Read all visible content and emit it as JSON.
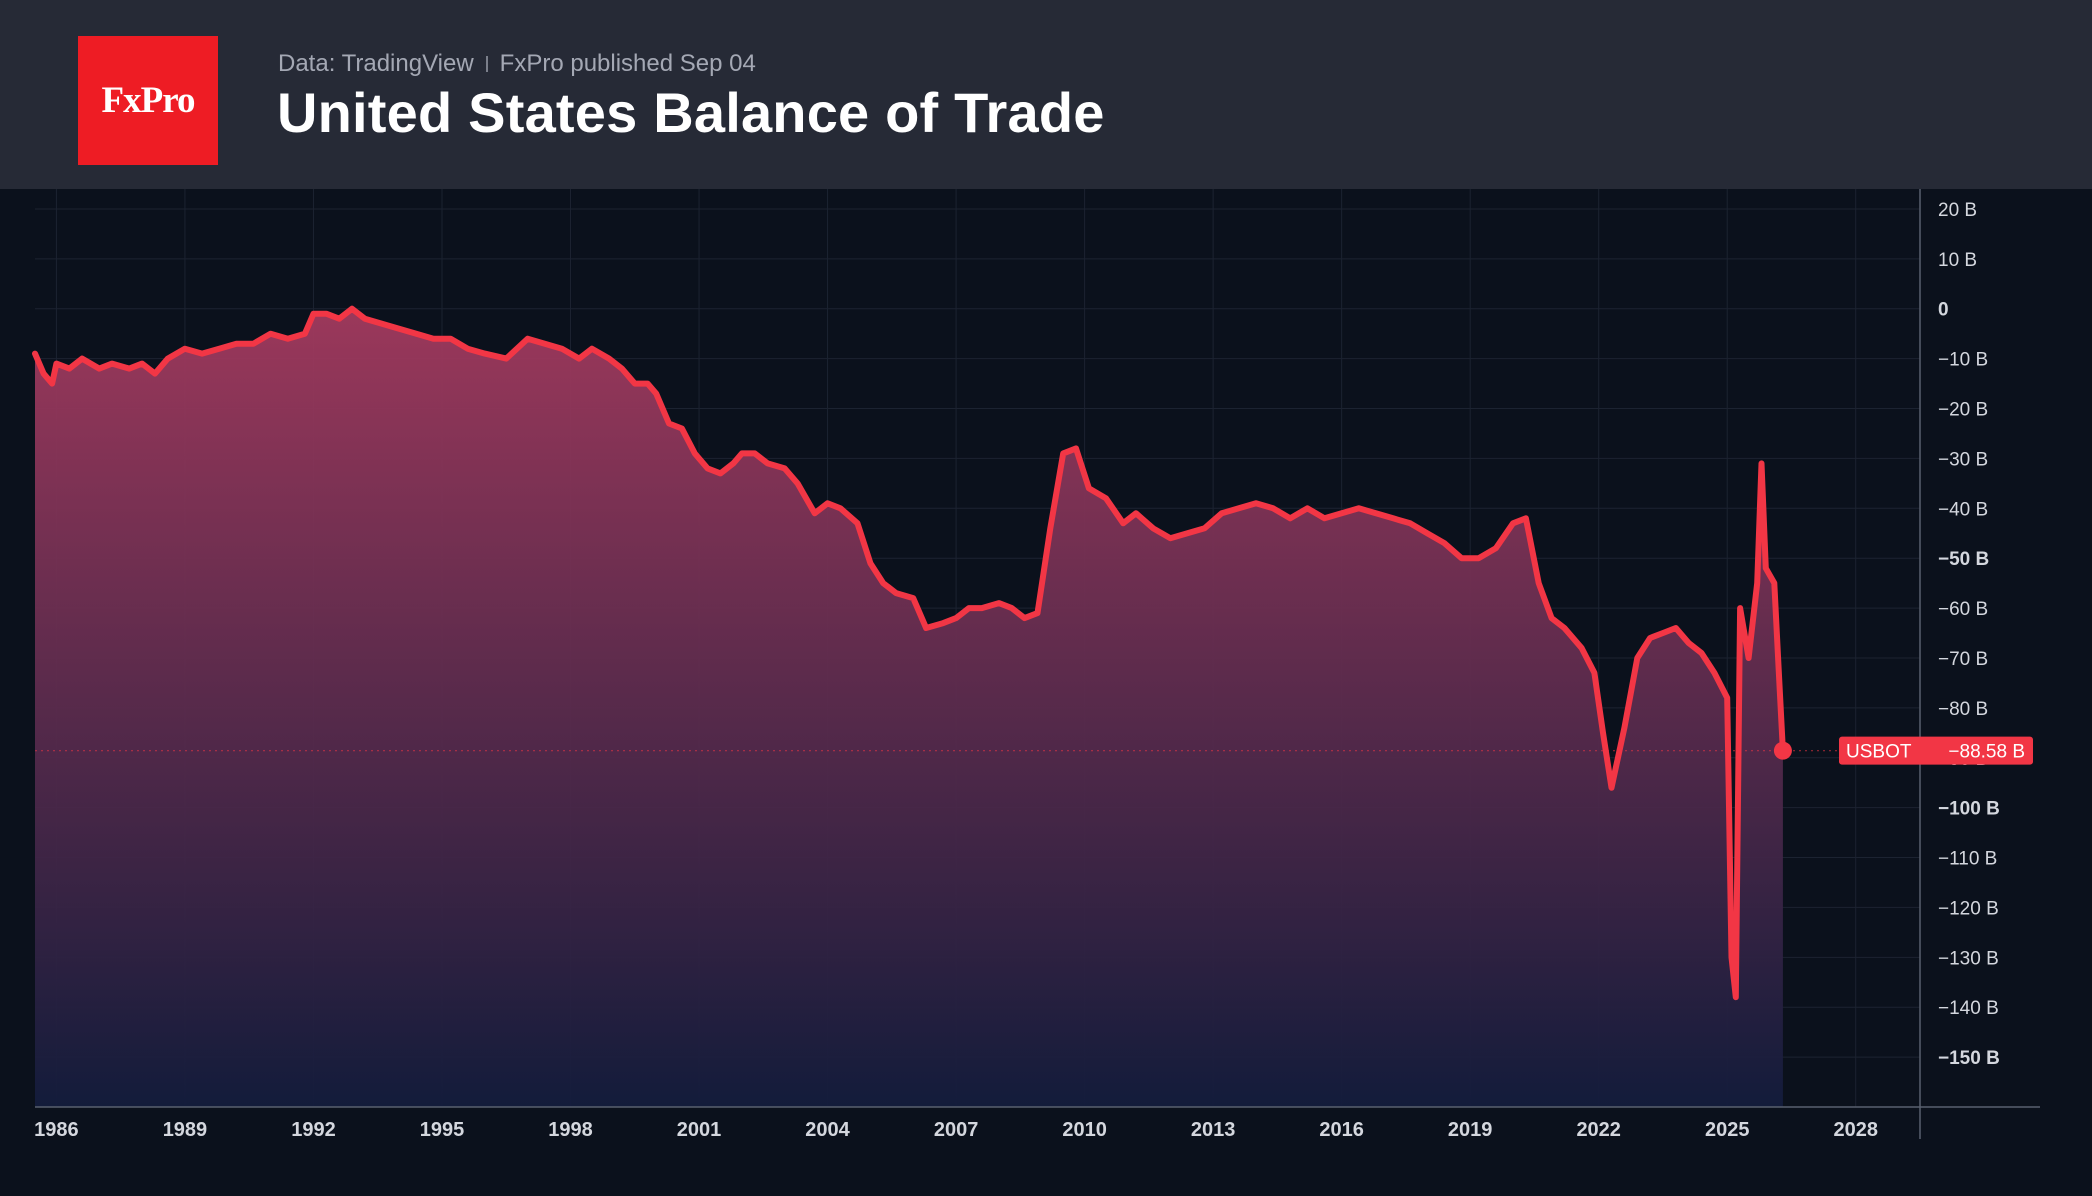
{
  "header": {
    "logo_text": "FxPro",
    "source": "Data: TradingView",
    "published": "FxPro published Sep 04",
    "title": "United States Balance of Trade"
  },
  "colors": {
    "header_bg": "#262a36",
    "plot_bg": "#0b111c",
    "line": "#f23645",
    "area_top": "#a33a5e",
    "area_bottom": "#131c3c",
    "logo_bg": "#ee1c24",
    "axis_text": "#d4d7de"
  },
  "chart_data": {
    "type": "area",
    "title": "United States Balance of Trade",
    "unit": "B",
    "x_tick_labels": [
      "1986",
      "1989",
      "1992",
      "1995",
      "1998",
      "2001",
      "2004",
      "2007",
      "2010",
      "2013",
      "2016",
      "2019",
      "2022",
      "2025",
      "2028"
    ],
    "y_tick_labels": [
      "20 B",
      "10 B",
      "0",
      "−10 B",
      "−20 B",
      "−30 B",
      "−40 B",
      "−50 B",
      "−60 B",
      "−70 B",
      "−80 B",
      "−90 B",
      "−100 B",
      "−110 B",
      "−120 B",
      "−130 B",
      "−140 B",
      "−150 B"
    ],
    "y_tick_values": [
      20,
      10,
      0,
      -10,
      -20,
      -30,
      -40,
      -50,
      -60,
      -70,
      -80,
      -90,
      -100,
      -110,
      -120,
      -130,
      -140,
      -150
    ],
    "xlim": [
      1985.5,
      2029.5
    ],
    "ylim": [
      -160,
      24
    ],
    "grid": true,
    "series": [
      {
        "name": "USBOT",
        "last_value": -88.58,
        "last_label": "USBOT",
        "last_value_label": "−88.58 B",
        "points": [
          [
            1985.5,
            -9
          ],
          [
            1985.7,
            -13
          ],
          [
            1985.9,
            -15
          ],
          [
            1986.0,
            -11
          ],
          [
            1986.3,
            -12
          ],
          [
            1986.6,
            -10
          ],
          [
            1987.0,
            -12
          ],
          [
            1987.3,
            -11
          ],
          [
            1987.7,
            -12
          ],
          [
            1988.0,
            -11
          ],
          [
            1988.3,
            -13
          ],
          [
            1988.6,
            -10
          ],
          [
            1989.0,
            -8
          ],
          [
            1989.4,
            -9
          ],
          [
            1989.8,
            -8
          ],
          [
            1990.2,
            -7
          ],
          [
            1990.6,
            -7
          ],
          [
            1991.0,
            -5
          ],
          [
            1991.4,
            -6
          ],
          [
            1991.8,
            -5
          ],
          [
            1992.0,
            -1
          ],
          [
            1992.3,
            -1
          ],
          [
            1992.6,
            -2
          ],
          [
            1992.9,
            0
          ],
          [
            1993.2,
            -2
          ],
          [
            1993.6,
            -3
          ],
          [
            1994.0,
            -4
          ],
          [
            1994.4,
            -5
          ],
          [
            1994.8,
            -6
          ],
          [
            1995.2,
            -6
          ],
          [
            1995.6,
            -8
          ],
          [
            1996.0,
            -9
          ],
          [
            1996.5,
            -10
          ],
          [
            1997.0,
            -6
          ],
          [
            1997.4,
            -7
          ],
          [
            1997.8,
            -8
          ],
          [
            1998.2,
            -10
          ],
          [
            1998.5,
            -8
          ],
          [
            1998.9,
            -10
          ],
          [
            1999.2,
            -12
          ],
          [
            1999.5,
            -15
          ],
          [
            1999.8,
            -15
          ],
          [
            2000.0,
            -17
          ],
          [
            2000.3,
            -23
          ],
          [
            2000.6,
            -24
          ],
          [
            2000.9,
            -29
          ],
          [
            2001.2,
            -32
          ],
          [
            2001.5,
            -33
          ],
          [
            2001.8,
            -31
          ],
          [
            2002.0,
            -29
          ],
          [
            2002.3,
            -29
          ],
          [
            2002.6,
            -31
          ],
          [
            2003.0,
            -32
          ],
          [
            2003.3,
            -35
          ],
          [
            2003.7,
            -41
          ],
          [
            2004.0,
            -39
          ],
          [
            2004.3,
            -40
          ],
          [
            2004.7,
            -43
          ],
          [
            2005.0,
            -51
          ],
          [
            2005.3,
            -55
          ],
          [
            2005.6,
            -57
          ],
          [
            2006.0,
            -58
          ],
          [
            2006.3,
            -64
          ],
          [
            2006.7,
            -63
          ],
          [
            2007.0,
            -62
          ],
          [
            2007.3,
            -60
          ],
          [
            2007.6,
            -60
          ],
          [
            2008.0,
            -59
          ],
          [
            2008.3,
            -60
          ],
          [
            2008.6,
            -62
          ],
          [
            2008.9,
            -61
          ],
          [
            2009.2,
            -44
          ],
          [
            2009.5,
            -29
          ],
          [
            2009.8,
            -28
          ],
          [
            2010.1,
            -36
          ],
          [
            2010.5,
            -38
          ],
          [
            2010.9,
            -43
          ],
          [
            2011.2,
            -41
          ],
          [
            2011.6,
            -44
          ],
          [
            2012.0,
            -46
          ],
          [
            2012.4,
            -45
          ],
          [
            2012.8,
            -44
          ],
          [
            2013.2,
            -41
          ],
          [
            2013.6,
            -40
          ],
          [
            2014.0,
            -39
          ],
          [
            2014.4,
            -40
          ],
          [
            2014.8,
            -42
          ],
          [
            2015.2,
            -40
          ],
          [
            2015.6,
            -42
          ],
          [
            2016.0,
            -41
          ],
          [
            2016.4,
            -40
          ],
          [
            2016.8,
            -41
          ],
          [
            2017.2,
            -42
          ],
          [
            2017.6,
            -43
          ],
          [
            2018.0,
            -45
          ],
          [
            2018.4,
            -47
          ],
          [
            2018.8,
            -50
          ],
          [
            2019.2,
            -50
          ],
          [
            2019.6,
            -48
          ],
          [
            2020.0,
            -43
          ],
          [
            2020.3,
            -42
          ],
          [
            2020.6,
            -55
          ],
          [
            2020.9,
            -62
          ],
          [
            2021.2,
            -64
          ],
          [
            2021.6,
            -68
          ],
          [
            2021.9,
            -73
          ],
          [
            2022.1,
            -85
          ],
          [
            2022.3,
            -96
          ],
          [
            2022.6,
            -84
          ],
          [
            2022.9,
            -70
          ],
          [
            2023.2,
            -66
          ],
          [
            2023.5,
            -65
          ],
          [
            2023.8,
            -64
          ],
          [
            2024.1,
            -67
          ],
          [
            2024.4,
            -69
          ],
          [
            2024.7,
            -73
          ],
          [
            2025.0,
            -78
          ],
          [
            2025.1,
            -130
          ],
          [
            2025.2,
            -138
          ],
          [
            2025.3,
            -60
          ],
          [
            2025.5,
            -70
          ],
          [
            2025.7,
            -55
          ],
          [
            2025.8,
            -31
          ],
          [
            2025.9,
            -52
          ],
          [
            2026.1,
            -55
          ],
          [
            2026.2,
            -72
          ],
          [
            2026.3,
            -88.58
          ]
        ]
      }
    ]
  }
}
